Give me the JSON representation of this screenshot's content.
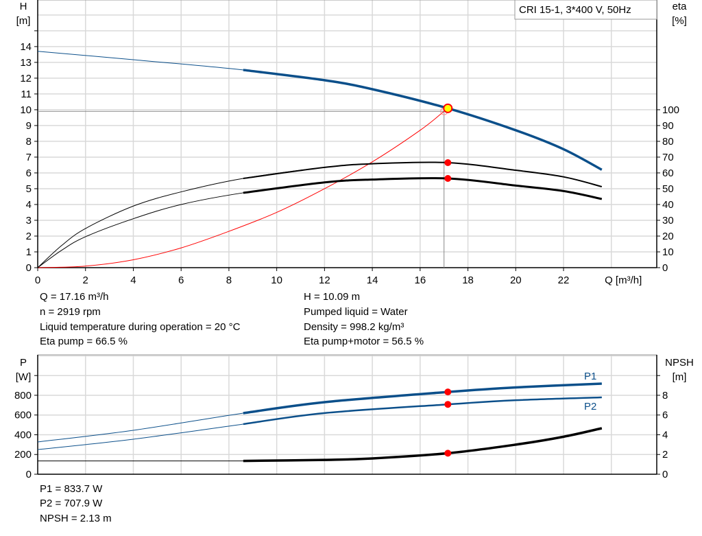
{
  "chart_data": [
    {
      "type": "line",
      "title": "CRI 15-1, 3*400 V, 50Hz",
      "xlabel": "Q [m³/h]",
      "ylabel_left": [
        "H",
        "[m]"
      ],
      "ylabel_right": [
        "eta",
        "[%]"
      ],
      "xlim": [
        0,
        25.9
      ],
      "ylim_left": [
        0,
        16.95
      ],
      "ylim_right": [
        0,
        169.5
      ],
      "x_ticks": [
        "0",
        "2",
        "4",
        "6",
        "8",
        "10",
        "12",
        "14",
        "16",
        "18",
        "20",
        "22"
      ],
      "y_left_ticks": [
        "0",
        "1",
        "2",
        "3",
        "4",
        "5",
        "6",
        "7",
        "8",
        "9",
        "10",
        "11",
        "12",
        "13",
        "14"
      ],
      "y_right_ticks": [
        "0",
        "10",
        "20",
        "30",
        "40",
        "50",
        "60",
        "70",
        "80",
        "90",
        "100"
      ],
      "grid": true,
      "series": [
        {
          "axis": "left",
          "color": "#0b4f8a",
          "x": [
            0,
            4,
            8.6,
            12,
            14,
            17.16,
            20,
            22,
            23.6
          ],
          "y": [
            13.7,
            13.17,
            12.52,
            11.87,
            11.3,
            10.09,
            8.7,
            7.5,
            6.2
          ]
        },
        {
          "axis": "right",
          "color": "#000000",
          "x": [
            0,
            1,
            2,
            4,
            6,
            8.6,
            12,
            14,
            17.16,
            20,
            22,
            23.6
          ],
          "y": [
            0,
            14,
            24.8,
            39,
            48,
            56.5,
            63.5,
            65.8,
            66.5,
            61.7,
            57.5,
            51.3
          ]
        },
        {
          "axis": "right",
          "color": "#000000",
          "x": [
            0,
            1,
            2,
            4,
            6,
            8.6,
            12,
            14,
            17.16,
            20,
            22,
            23.6
          ],
          "y": [
            0,
            11,
            19.6,
            31,
            40,
            47.4,
            54,
            55.8,
            56.5,
            52,
            48.5,
            43.5
          ]
        },
        {
          "axis": "left",
          "color": "#ff0000",
          "x": [
            0,
            2,
            4,
            6,
            8,
            10,
            12,
            14,
            16,
            17.0
          ],
          "y": [
            0,
            0.1,
            0.5,
            1.25,
            2.3,
            3.5,
            5.0,
            6.7,
            8.7,
            9.9
          ]
        }
      ],
      "operating_point": {
        "Q": 17.16,
        "H": 10.09,
        "eta_pump": 66.5,
        "eta_pump_motor": 56.5
      }
    },
    {
      "type": "line",
      "ylabel_left": [
        "P",
        "[W]"
      ],
      "ylabel_right": [
        "NPSH",
        "[m]"
      ],
      "xlim": [
        0,
        25.9
      ],
      "ylim_left": [
        0,
        1210
      ],
      "ylim_right": [
        0,
        12.1
      ],
      "y_left_ticks": [
        "0",
        "200",
        "400",
        "600",
        "800"
      ],
      "y_right_ticks": [
        "0",
        "2",
        "4",
        "6",
        "8"
      ],
      "grid": true,
      "series": [
        {
          "name": "P1",
          "axis": "left",
          "color": "#0b4f8a",
          "x": [
            0,
            4,
            8.6,
            12,
            17.16,
            20,
            23.6
          ],
          "y": [
            327,
            445,
            619,
            730,
            833.7,
            880,
            918
          ]
        },
        {
          "name": "P2",
          "axis": "left",
          "color": "#0b4f8a",
          "x": [
            0,
            4,
            8.6,
            12,
            17.16,
            20,
            23.6
          ],
          "y": [
            250,
            355,
            508,
            620,
            707.9,
            750,
            779
          ]
        },
        {
          "axis": "right",
          "color": "#000000",
          "x": [
            0,
            4,
            8.6,
            12,
            14,
            17.16,
            20,
            22,
            23.6
          ],
          "y": [
            1.35,
            1.35,
            1.35,
            1.45,
            1.6,
            2.13,
            3.0,
            3.8,
            4.66
          ]
        }
      ]
    }
  ],
  "info_top": {
    "left": [
      "Q = 17.16 m³/h",
      "n = 2919 rpm",
      "Liquid temperature during operation = 20 °C",
      "Eta pump = 66.5 %"
    ],
    "right": [
      "H = 10.09 m",
      "Pumped liquid = Water",
      "Density = 998.2 kg/m³",
      "Eta pump+motor = 56.5 %"
    ]
  },
  "info_bottom": [
    "P1 = 833.7 W",
    "P2 = 707.9 W",
    "NPSH = 2.13 m"
  ],
  "colors": {
    "blue": "#0b4f8a",
    "black": "#000000",
    "red": "#ff0000",
    "op_fill": "#ffff00",
    "grid": "#d9d9d9"
  }
}
